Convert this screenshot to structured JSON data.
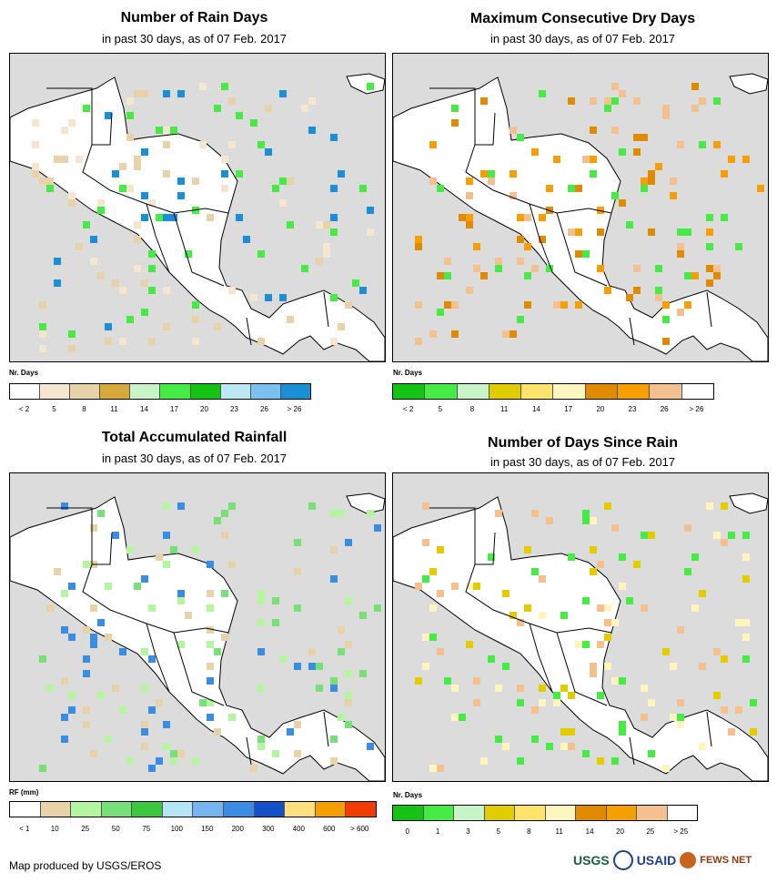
{
  "panels": [
    {
      "title": "Number of Rain Days",
      "subtitle": "in past 30 days, as of 07 Feb. 2017",
      "legend_title": "Nr. Days",
      "legend_colors": [
        "#ffffff",
        "#f5e6d0",
        "#e8d2a8",
        "#d6a93a",
        "#c8f5c8",
        "#46eb46",
        "#15c315",
        "#bce8f5",
        "#7cc0f0",
        "#1a8fd6"
      ],
      "legend_labels": [
        "< 2",
        "5",
        "8",
        "11",
        "14",
        "17",
        "20",
        "23",
        "26",
        "> 26"
      ],
      "scatter": [
        "#e8d2a8",
        "#f5e6d0",
        "#46eb46",
        "#1a8fd6"
      ]
    },
    {
      "title": "Maximum Consecutive Dry Days",
      "subtitle": "in past 30 days, as of 07 Feb. 2017",
      "legend_title": "Nr. Days",
      "legend_colors": [
        "#15c315",
        "#46eb46",
        "#c8f5c8",
        "#e0cc00",
        "#ffe36a",
        "#fff5c0",
        "#e08a00",
        "#f5a000",
        "#f5c090",
        "#ffffff"
      ],
      "legend_labels": [
        "< 2",
        "5",
        "8",
        "11",
        "14",
        "17",
        "20",
        "23",
        "26",
        "> 26"
      ],
      "scatter": [
        "#f5a000",
        "#e08a00",
        "#f5c090",
        "#46eb46"
      ]
    },
    {
      "title": "Total Accumulated Rainfall",
      "subtitle": "in past 30 days, as of 07 Feb. 2017",
      "legend_title": "RF (mm)",
      "legend_colors": [
        "#ffffff",
        "#e8d2a8",
        "#b4f5a0",
        "#78e078",
        "#3cc83c",
        "#b4e6f5",
        "#78b4f0",
        "#3c8ce6",
        "#1450c8",
        "#ffe080",
        "#f5a000",
        "#f53c00"
      ],
      "legend_labels": [
        "< 1",
        "10",
        "25",
        "50",
        "75",
        "100",
        "150",
        "200",
        "300",
        "400",
        "600",
        "> 600"
      ],
      "scatter": [
        "#b4f5a0",
        "#e8d2a8",
        "#78e078",
        "#3c8ce6"
      ]
    },
    {
      "title": "Number of Days Since Rain",
      "subtitle": "in past 30 days, as of 07 Feb. 2017",
      "legend_title": "Nr. Days",
      "legend_colors": [
        "#15c315",
        "#46eb46",
        "#c8f5c8",
        "#e0cc00",
        "#ffe36a",
        "#fff5c0",
        "#e08a00",
        "#f5a000",
        "#f5c090",
        "#ffffff"
      ],
      "legend_labels": [
        "0",
        "1",
        "3",
        "5",
        "8",
        "11",
        "14",
        "20",
        "25",
        "> 25"
      ],
      "scatter": [
        "#46eb46",
        "#fff5c0",
        "#f5c090",
        "#e0cc00"
      ]
    }
  ],
  "footer": "Map produced by USGS/EROS",
  "logos": [
    "USGS",
    "USAID",
    "FEWS NET"
  ]
}
